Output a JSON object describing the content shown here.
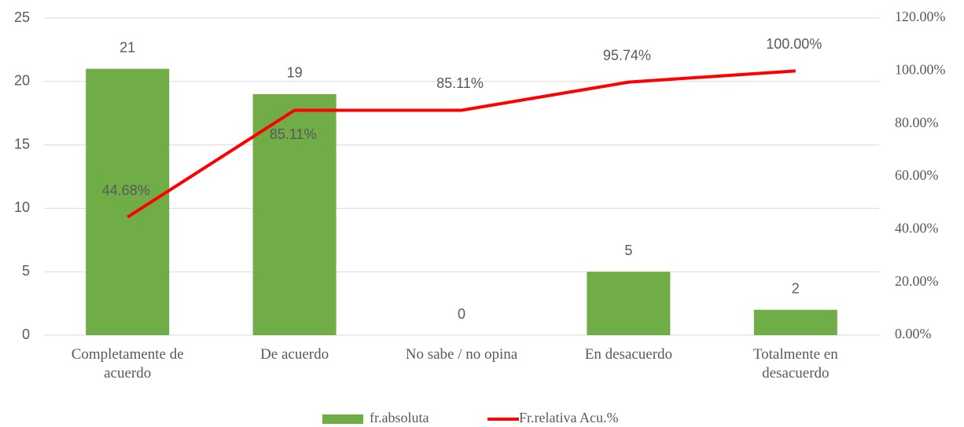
{
  "chart_data": {
    "type": "bar",
    "categories": [
      "Completamente de acuerdo",
      "De acuerdo",
      "No sabe / no opina",
      "En desacuerdo",
      "Totalmente en desacuerdo"
    ],
    "series": [
      {
        "name": "fr.absoluta",
        "type": "bar",
        "color": "#70ad47",
        "values": [
          21,
          19,
          0,
          5,
          2
        ]
      },
      {
        "name": "Fr.relativa Acu.%",
        "type": "line",
        "axis": "y2",
        "color": "#ff0000",
        "values": [
          44.68,
          85.11,
          85.11,
          95.74,
          100
        ],
        "value_labels": [
          "44.68%",
          "85.11%",
          "85.11%",
          "95.74%",
          "100.00%"
        ]
      }
    ],
    "ylim": [
      0,
      25
    ],
    "yticks": [
      0,
      5,
      10,
      15,
      20,
      25
    ],
    "y2lim": [
      0,
      120
    ],
    "y2ticks": [
      {
        "value": 0,
        "label": "0.00%"
      },
      {
        "value": 20,
        "label": "20.00%"
      },
      {
        "value": 40,
        "label": "40.00%"
      },
      {
        "value": 60,
        "label": "60.00%"
      },
      {
        "value": 80,
        "label": "80.00%"
      },
      {
        "value": 100,
        "label": "100.00%"
      },
      {
        "value": 120,
        "label": "120.00%"
      }
    ],
    "grid": true,
    "legend": "bottom"
  }
}
